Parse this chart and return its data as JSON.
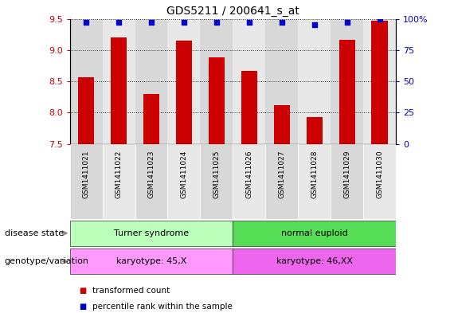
{
  "title": "GDS5211 / 200641_s_at",
  "samples": [
    "GSM1411021",
    "GSM1411022",
    "GSM1411023",
    "GSM1411024",
    "GSM1411025",
    "GSM1411026",
    "GSM1411027",
    "GSM1411028",
    "GSM1411029",
    "GSM1411030"
  ],
  "transformed_count": [
    8.57,
    9.2,
    8.3,
    9.15,
    8.88,
    8.67,
    8.12,
    7.93,
    9.17,
    9.47
  ],
  "percentile_rank": [
    97,
    97,
    97,
    97,
    97,
    97,
    97,
    95,
    97,
    100
  ],
  "bar_color": "#cc0000",
  "dot_color": "#0000cc",
  "ylim_left": [
    7.5,
    9.5
  ],
  "ylim_right": [
    0,
    100
  ],
  "yticks_left": [
    7.5,
    8.0,
    8.5,
    9.0,
    9.5
  ],
  "yticks_right": [
    0,
    25,
    50,
    75,
    100
  ],
  "disease_state_groups": [
    {
      "label": "Turner syndrome",
      "start": 0,
      "end": 4,
      "color": "#bbffbb"
    },
    {
      "label": "normal euploid",
      "start": 5,
      "end": 9,
      "color": "#55dd55"
    }
  ],
  "genotype_groups": [
    {
      "label": "karyotype: 45,X",
      "start": 0,
      "end": 4,
      "color": "#ff99ff"
    },
    {
      "label": "karyotype: 46,XX",
      "start": 5,
      "end": 9,
      "color": "#ee66ee"
    }
  ],
  "disease_state_label": "disease state",
  "genotype_label": "genotype/variation",
  "legend_items": [
    {
      "label": "transformed count",
      "color": "#cc0000"
    },
    {
      "label": "percentile rank within the sample",
      "color": "#0000cc"
    }
  ],
  "bar_width": 0.5,
  "background_color": "#ffffff",
  "col_bg_even": "#d8d8d8",
  "col_bg_odd": "#e8e8e8"
}
